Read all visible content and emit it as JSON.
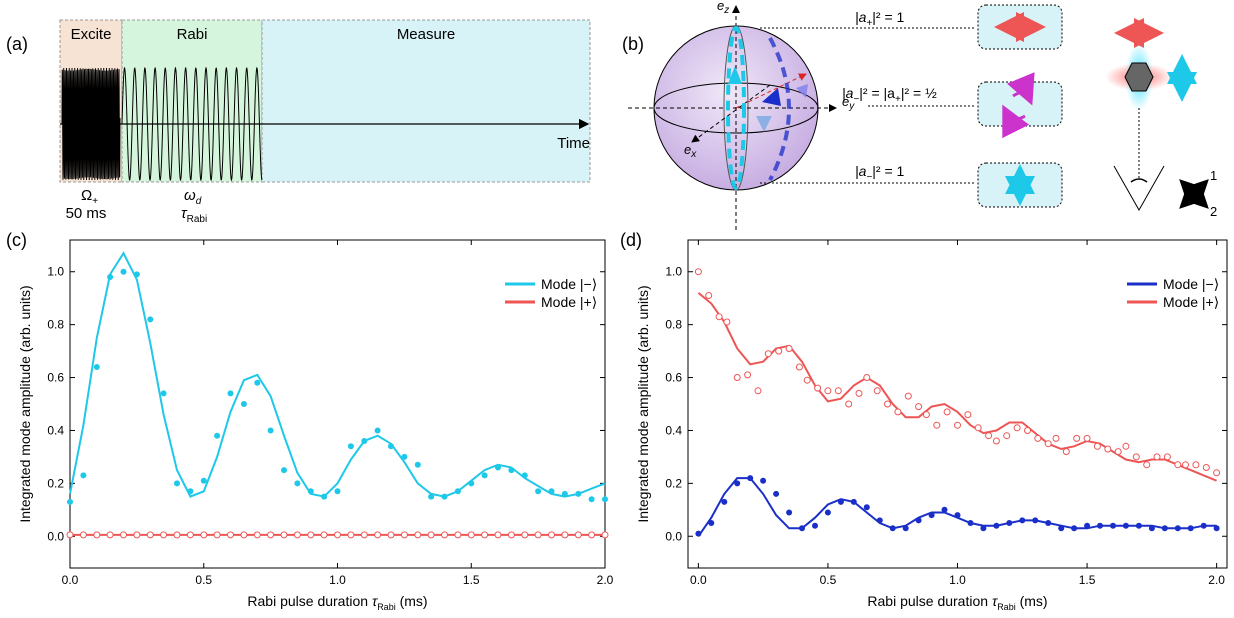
{
  "panels": {
    "a": {
      "label": "(a)",
      "stage_titles": [
        "Excite",
        "Rabi",
        "Measure"
      ],
      "time_label": "Time",
      "excite_freq": {
        "sym": "Ω",
        "sub": "+"
      },
      "excite_dur": "50 ms",
      "rabi_freq": {
        "sym": "ω",
        "sub": "d"
      },
      "rabi_dur": {
        "sym": "τ",
        "sub": "Rabi"
      },
      "colors": {
        "excite": "#f6e3d4",
        "rabi": "#d6f5dd",
        "measure": "#d8f3f7"
      }
    },
    "b": {
      "label": "(b)",
      "axes": {
        "z": "e",
        "z_sub": "z",
        "y": "e",
        "y_sub": "y",
        "x": "e",
        "x_sub": "x"
      },
      "states": [
        {
          "pre": "|a",
          "sub": "+",
          "post": "|² = 1",
          "icon": "horizontal-arrow-icon"
        },
        {
          "pre": "|a",
          "sub": "−",
          "mid": "|² = |a",
          "sub2": "+",
          "post": "|² = ½",
          "icon": "circular-arrows-icon"
        },
        {
          "pre": "|a",
          "sub": "−",
          "post": "|² = 1",
          "icon": "vertical-arrow-icon"
        }
      ],
      "basis_labels": [
        "1",
        "2"
      ],
      "colors": {
        "sphere": "#c9b6e8",
        "cyan": "#1ec8e8",
        "blue": "#1a2fc9",
        "red": "#ee5555",
        "magenta": "#cc33cc",
        "box": "#d8f3f7"
      }
    },
    "c": {
      "label": "(c)"
    },
    "d": {
      "label": "(d)"
    }
  },
  "chart_data": [
    {
      "panel": "(c)",
      "type": "scatter",
      "xlabel": "Rabi pulse duration τ_Rabi (ms)",
      "ylabel": "Integrated mode amplitude (arb. units)",
      "xlim": [
        0,
        2.0
      ],
      "ylim": [
        -0.12,
        1.12
      ],
      "xticks": [
        "0.0",
        "0.5",
        "1.0",
        "1.5",
        "2.0"
      ],
      "xtick_values": [
        0,
        0.5,
        1.0,
        1.5,
        2.0
      ],
      "yticks": [
        "0.0",
        "0.2",
        "0.4",
        "0.6",
        "0.8",
        "1.0"
      ],
      "ytick_values": [
        0,
        0.2,
        0.4,
        0.6,
        0.8,
        1.0
      ],
      "legend_position": "top-right",
      "series": [
        {
          "name": "Mode |−⟩",
          "color": "#1ec8e8",
          "marker": "filled",
          "x": [
            0.0,
            0.05,
            0.1,
            0.15,
            0.2,
            0.25,
            0.3,
            0.35,
            0.4,
            0.45,
            0.5,
            0.55,
            0.6,
            0.65,
            0.7,
            0.75,
            0.8,
            0.85,
            0.9,
            0.95,
            1.0,
            1.05,
            1.1,
            1.15,
            1.2,
            1.25,
            1.3,
            1.35,
            1.4,
            1.45,
            1.5,
            1.55,
            1.6,
            1.65,
            1.7,
            1.75,
            1.8,
            1.85,
            1.9,
            1.95,
            2.0
          ],
          "y": [
            0.13,
            0.23,
            0.64,
            0.98,
            1.0,
            0.99,
            0.82,
            0.54,
            0.2,
            0.17,
            0.21,
            0.38,
            0.54,
            0.5,
            0.58,
            0.4,
            0.25,
            0.2,
            0.17,
            0.15,
            0.17,
            0.34,
            0.36,
            0.4,
            0.34,
            0.3,
            0.27,
            0.15,
            0.15,
            0.17,
            0.2,
            0.23,
            0.26,
            0.25,
            0.23,
            0.17,
            0.17,
            0.16,
            0.16,
            0.14,
            0.14
          ]
        },
        {
          "name": "Mode |+⟩",
          "color": "#ee5555",
          "marker": "open",
          "x": [
            0.0,
            0.05,
            0.1,
            0.15,
            0.2,
            0.25,
            0.3,
            0.35,
            0.4,
            0.45,
            0.5,
            0.55,
            0.6,
            0.65,
            0.7,
            0.75,
            0.8,
            0.85,
            0.9,
            0.95,
            1.0,
            1.05,
            1.1,
            1.15,
            1.2,
            1.25,
            1.3,
            1.35,
            1.4,
            1.45,
            1.5,
            1.55,
            1.6,
            1.65,
            1.7,
            1.75,
            1.8,
            1.85,
            1.9,
            1.95,
            2.0
          ],
          "y": [
            0.005,
            0.005,
            0.005,
            0.005,
            0.005,
            0.005,
            0.005,
            0.005,
            0.005,
            0.005,
            0.005,
            0.005,
            0.005,
            0.005,
            0.005,
            0.005,
            0.005,
            0.005,
            0.005,
            0.005,
            0.005,
            0.005,
            0.005,
            0.005,
            0.005,
            0.005,
            0.005,
            0.005,
            0.005,
            0.005,
            0.005,
            0.005,
            0.005,
            0.005,
            0.005,
            0.005,
            0.005,
            0.005,
            0.005,
            0.005,
            0.005
          ]
        }
      ],
      "fits": [
        {
          "name": "Mode |−⟩",
          "color": "#1ec8e8",
          "x": [
            0.0,
            0.05,
            0.1,
            0.15,
            0.2,
            0.25,
            0.3,
            0.35,
            0.4,
            0.45,
            0.5,
            0.55,
            0.6,
            0.65,
            0.7,
            0.75,
            0.8,
            0.85,
            0.9,
            0.95,
            1.0,
            1.05,
            1.1,
            1.15,
            1.2,
            1.25,
            1.3,
            1.35,
            1.4,
            1.45,
            1.5,
            1.55,
            1.6,
            1.65,
            1.7,
            1.75,
            1.8,
            1.85,
            1.9,
            1.95,
            2.0
          ],
          "y": [
            0.16,
            0.42,
            0.75,
            0.99,
            1.07,
            0.97,
            0.73,
            0.46,
            0.25,
            0.15,
            0.17,
            0.3,
            0.47,
            0.59,
            0.61,
            0.53,
            0.38,
            0.24,
            0.16,
            0.15,
            0.2,
            0.29,
            0.36,
            0.38,
            0.35,
            0.28,
            0.2,
            0.16,
            0.15,
            0.17,
            0.21,
            0.25,
            0.27,
            0.26,
            0.22,
            0.19,
            0.16,
            0.15,
            0.16,
            0.18,
            0.2
          ]
        },
        {
          "name": "Mode |+⟩",
          "color": "#ee5555",
          "x": [
            0.0,
            2.0
          ],
          "y": [
            0.005,
            0.005
          ]
        }
      ]
    },
    {
      "panel": "(d)",
      "type": "scatter",
      "xlabel": "Rabi pulse duration τ_Rabi (ms)",
      "ylabel": "Integrated mode amplitude (arb. units)",
      "xlim": [
        -0.04,
        2.04
      ],
      "ylim": [
        -0.12,
        1.12
      ],
      "xticks": [
        "0.0",
        "0.5",
        "1.0",
        "1.5",
        "2.0"
      ],
      "xtick_values": [
        0,
        0.5,
        1.0,
        1.5,
        2.0
      ],
      "yticks": [
        "0.0",
        "0.2",
        "0.4",
        "0.6",
        "0.8",
        "1.0"
      ],
      "ytick_values": [
        0,
        0.2,
        0.4,
        0.6,
        0.8,
        1.0
      ],
      "legend_position": "top-right",
      "series": [
        {
          "name": "Mode |−⟩",
          "color": "#1a2fc9",
          "marker": "filled",
          "x": [
            0.0,
            0.05,
            0.1,
            0.15,
            0.2,
            0.25,
            0.3,
            0.35,
            0.4,
            0.45,
            0.5,
            0.55,
            0.6,
            0.65,
            0.7,
            0.75,
            0.8,
            0.85,
            0.9,
            0.95,
            1.0,
            1.05,
            1.1,
            1.15,
            1.2,
            1.25,
            1.3,
            1.35,
            1.4,
            1.45,
            1.5,
            1.55,
            1.6,
            1.65,
            1.7,
            1.75,
            1.8,
            1.85,
            1.9,
            1.95,
            2.0
          ],
          "y": [
            0.01,
            0.05,
            0.13,
            0.2,
            0.22,
            0.21,
            0.16,
            0.09,
            0.03,
            0.04,
            0.09,
            0.13,
            0.13,
            0.11,
            0.06,
            0.03,
            0.03,
            0.06,
            0.08,
            0.1,
            0.08,
            0.05,
            0.03,
            0.04,
            0.05,
            0.06,
            0.06,
            0.05,
            0.03,
            0.03,
            0.04,
            0.04,
            0.04,
            0.04,
            0.04,
            0.03,
            0.03,
            0.03,
            0.03,
            0.04,
            0.03
          ]
        },
        {
          "name": "Mode |+⟩",
          "color": "#ee5555",
          "marker": "open",
          "x": [
            0.0,
            0.04,
            0.08,
            0.11,
            0.15,
            0.19,
            0.23,
            0.27,
            0.31,
            0.35,
            0.39,
            0.42,
            0.46,
            0.5,
            0.54,
            0.58,
            0.62,
            0.65,
            0.69,
            0.73,
            0.77,
            0.81,
            0.85,
            0.88,
            0.92,
            0.96,
            1.0,
            1.04,
            1.08,
            1.12,
            1.15,
            1.19,
            1.23,
            1.27,
            1.31,
            1.35,
            1.38,
            1.42,
            1.46,
            1.5,
            1.54,
            1.58,
            1.62,
            1.65,
            1.69,
            1.73,
            1.77,
            1.81,
            1.85,
            1.88,
            1.92,
            1.96,
            2.0
          ],
          "y": [
            1.0,
            0.91,
            0.83,
            0.81,
            0.6,
            0.61,
            0.55,
            0.69,
            0.7,
            0.71,
            0.64,
            0.59,
            0.56,
            0.55,
            0.55,
            0.5,
            0.54,
            0.6,
            0.55,
            0.5,
            0.47,
            0.53,
            0.49,
            0.46,
            0.42,
            0.47,
            0.42,
            0.46,
            0.41,
            0.38,
            0.36,
            0.38,
            0.41,
            0.4,
            0.37,
            0.35,
            0.37,
            0.32,
            0.37,
            0.37,
            0.34,
            0.33,
            0.32,
            0.34,
            0.3,
            0.27,
            0.3,
            0.3,
            0.27,
            0.27,
            0.27,
            0.26,
            0.24
          ]
        }
      ],
      "fits": [
        {
          "name": "Mode |−⟩",
          "color": "#1a2fc9",
          "x": [
            0.0,
            0.05,
            0.1,
            0.15,
            0.2,
            0.25,
            0.3,
            0.35,
            0.4,
            0.45,
            0.5,
            0.55,
            0.6,
            0.65,
            0.7,
            0.75,
            0.8,
            0.85,
            0.9,
            0.95,
            1.0,
            1.05,
            1.1,
            1.15,
            1.2,
            1.25,
            1.3,
            1.35,
            1.4,
            1.45,
            1.5,
            1.55,
            1.6,
            1.65,
            1.7,
            1.75,
            1.8,
            1.85,
            1.9,
            1.95,
            2.0
          ],
          "y": [
            0.0,
            0.07,
            0.16,
            0.22,
            0.22,
            0.16,
            0.08,
            0.03,
            0.03,
            0.07,
            0.12,
            0.14,
            0.13,
            0.09,
            0.05,
            0.03,
            0.04,
            0.07,
            0.09,
            0.09,
            0.07,
            0.05,
            0.04,
            0.04,
            0.05,
            0.06,
            0.06,
            0.05,
            0.04,
            0.03,
            0.03,
            0.04,
            0.04,
            0.04,
            0.04,
            0.04,
            0.03,
            0.03,
            0.03,
            0.04,
            0.04
          ]
        },
        {
          "name": "Mode |+⟩",
          "color": "#ee5555",
          "x": [
            0.0,
            0.05,
            0.1,
            0.15,
            0.2,
            0.25,
            0.3,
            0.35,
            0.4,
            0.45,
            0.5,
            0.55,
            0.6,
            0.65,
            0.7,
            0.75,
            0.8,
            0.85,
            0.9,
            0.95,
            1.0,
            1.05,
            1.1,
            1.15,
            1.2,
            1.25,
            1.3,
            1.35,
            1.4,
            1.45,
            1.5,
            1.55,
            1.6,
            1.65,
            1.7,
            1.75,
            1.8,
            1.85,
            1.9,
            1.95,
            2.0
          ],
          "y": [
            0.92,
            0.88,
            0.81,
            0.71,
            0.65,
            0.66,
            0.71,
            0.72,
            0.66,
            0.57,
            0.51,
            0.52,
            0.57,
            0.6,
            0.57,
            0.5,
            0.45,
            0.45,
            0.49,
            0.5,
            0.47,
            0.42,
            0.39,
            0.4,
            0.43,
            0.43,
            0.39,
            0.35,
            0.33,
            0.34,
            0.36,
            0.35,
            0.32,
            0.29,
            0.28,
            0.29,
            0.29,
            0.27,
            0.25,
            0.23,
            0.21
          ]
        }
      ]
    }
  ]
}
